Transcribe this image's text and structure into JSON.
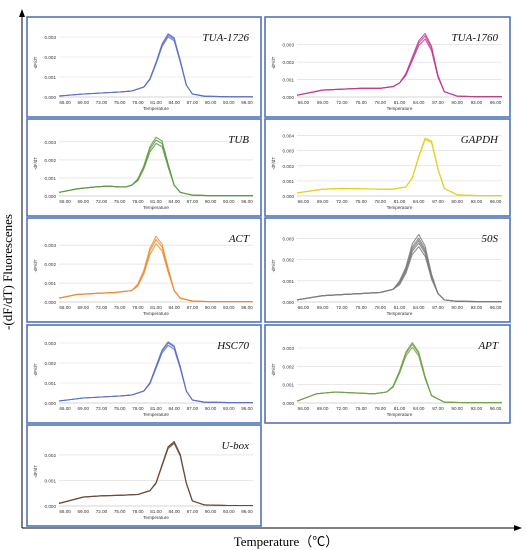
{
  "figure": {
    "ylabel": "-(dF/dT) Fluorescenes",
    "xlabel": "Temperature（℃）"
  },
  "chart_data": [
    {
      "type": "line",
      "gene": "TUA-1726",
      "xlabel": "Temperature",
      "ylabel": "-dF/dT",
      "xticks": [
        "66.00",
        "69.00",
        "72.00",
        "75.00",
        "78.00",
        "81.00",
        "84.00",
        "87.00",
        "90.00",
        "93.00",
        "96.00"
      ],
      "yticks": [
        "0.000",
        "0.001",
        "0.002",
        "0.003"
      ],
      "xlim": [
        65,
        97
      ],
      "ylim": [
        0,
        0.0034
      ],
      "color": "#5b6fc4",
      "series_x": [
        65,
        69,
        72,
        75,
        77,
        79,
        80,
        81,
        82,
        83,
        84,
        85,
        86,
        87,
        89,
        93,
        97
      ],
      "series_y": [
        5e-05,
        0.00015,
        0.0002,
        0.00025,
        0.0003,
        0.0005,
        0.0009,
        0.0017,
        0.0026,
        0.0031,
        0.0029,
        0.0018,
        0.0006,
        0.00015,
        4e-05,
        1e-05,
        1e-05
      ],
      "peak_scales": [
        0.97,
        1.0,
        1.02
      ]
    },
    {
      "type": "line",
      "gene": "TUA-1760",
      "xlabel": "Temperature",
      "ylabel": "-dF/dT",
      "xticks": [
        "66.00",
        "69.00",
        "72.00",
        "75.00",
        "78.00",
        "81.00",
        "84.00",
        "87.00",
        "90.00",
        "93.00",
        "96.00"
      ],
      "yticks": [
        "0.000",
        "0.001",
        "0.002",
        "0.003"
      ],
      "xlim": [
        65,
        97
      ],
      "ylim": [
        0,
        0.0039
      ],
      "color": "#c2378f",
      "series_x": [
        65,
        69,
        72,
        75,
        78,
        80,
        81,
        82,
        83,
        84,
        85,
        86,
        87,
        88,
        90,
        93,
        97
      ],
      "series_y": [
        0.0001,
        0.0004,
        0.00045,
        0.0005,
        0.0005,
        0.0006,
        0.0008,
        0.0013,
        0.0022,
        0.0031,
        0.0035,
        0.0028,
        0.0012,
        0.0003,
        5e-05,
        2e-05,
        2e-05
      ],
      "peak_scales": [
        0.95,
        1.0,
        1.04
      ]
    },
    {
      "type": "line",
      "gene": "TUB",
      "xlabel": "Temperature",
      "ylabel": "-dF/dT",
      "xticks": [
        "66.00",
        "69.00",
        "72.00",
        "75.00",
        "78.00",
        "81.00",
        "84.00",
        "87.00",
        "90.00",
        "93.00",
        "96.00"
      ],
      "yticks": [
        "0.000",
        "0.001",
        "0.002",
        "0.003"
      ],
      "xlim": [
        65,
        97
      ],
      "ylim": [
        0,
        0.0036
      ],
      "color": "#5a9a3c",
      "series_x": [
        65,
        68,
        71,
        73,
        75,
        76,
        77,
        78,
        79,
        80,
        81,
        82,
        83,
        84,
        85,
        87,
        90,
        97
      ],
      "series_y": [
        0.0002,
        0.0004,
        0.0005,
        0.00055,
        0.0005,
        0.0005,
        0.0006,
        0.0009,
        0.0016,
        0.0026,
        0.0031,
        0.0029,
        0.0017,
        0.0006,
        0.0002,
        5e-05,
        2e-05,
        2e-05
      ],
      "peak_scales": [
        0.94,
        1.0,
        1.05
      ]
    },
    {
      "type": "line",
      "gene": "GAPDH",
      "xlabel": "Temperature",
      "ylabel": "-dF/dT",
      "xticks": [
        "66.00",
        "69.00",
        "72.00",
        "75.00",
        "78.00",
        "81.00",
        "84.00",
        "87.00",
        "90.00",
        "93.00",
        "96.00"
      ],
      "yticks": [
        "0.000",
        "0.001",
        "0.002",
        "0.003",
        "0.004"
      ],
      "xlim": [
        65,
        97
      ],
      "ylim": [
        0,
        0.0043
      ],
      "color": "#e6cf1f",
      "series_x": [
        65,
        69,
        72,
        75,
        78,
        80,
        82,
        83,
        84,
        85,
        86,
        87,
        88,
        90,
        93,
        97
      ],
      "series_y": [
        0.0002,
        0.00045,
        0.0005,
        0.00048,
        0.00045,
        0.00045,
        0.0006,
        0.0012,
        0.0026,
        0.0038,
        0.0036,
        0.0018,
        0.0005,
        8e-05,
        3e-05,
        2e-05
      ],
      "peak_scales": [
        0.98,
        1.0,
        1.01
      ]
    },
    {
      "type": "line",
      "gene": "ACT",
      "xlabel": "Temperature",
      "ylabel": "-dF/dT",
      "xticks": [
        "66.00",
        "69.00",
        "72.00",
        "75.00",
        "78.00",
        "81.00",
        "84.00",
        "87.00",
        "90.00",
        "93.00",
        "96.00"
      ],
      "yticks": [
        "0.000",
        "0.001",
        "0.002",
        "0.003"
      ],
      "xlim": [
        65,
        97
      ],
      "ylim": [
        0,
        0.0038
      ],
      "color": "#ec8b2e",
      "series_x": [
        65,
        68,
        71,
        74,
        77,
        78,
        79,
        80,
        81,
        82,
        83,
        84,
        85,
        87,
        90,
        97
      ],
      "series_y": [
        0.0002,
        0.0004,
        0.00045,
        0.0005,
        0.0006,
        0.0009,
        0.0016,
        0.0027,
        0.0033,
        0.0029,
        0.0017,
        0.0006,
        0.0002,
        5e-05,
        2e-05,
        2e-05
      ],
      "peak_scales": [
        0.93,
        1.0,
        1.05
      ]
    },
    {
      "type": "line",
      "gene": "50S",
      "xlabel": "Temperature",
      "ylabel": "-dF/dT",
      "xticks": [
        "66.00",
        "69.00",
        "72.00",
        "75.00",
        "78.00",
        "81.00",
        "84.00",
        "87.00",
        "90.00",
        "93.00",
        "96.00"
      ],
      "yticks": [
        "0.000",
        "0.001",
        "0.002",
        "0.003"
      ],
      "xlim": [
        65,
        97
      ],
      "ylim": [
        0,
        0.0034
      ],
      "color": "#7d7d7d",
      "series_x": [
        65,
        69,
        72,
        75,
        78,
        80,
        81,
        82,
        83,
        84,
        85,
        86,
        87,
        88,
        90,
        93,
        97
      ],
      "series_y": [
        0.0001,
        0.0003,
        0.00035,
        0.0004,
        0.00045,
        0.0006,
        0.0009,
        0.0015,
        0.0025,
        0.0029,
        0.0024,
        0.0012,
        0.0004,
        0.0001,
        3e-05,
        2e-05,
        2e-05
      ],
      "peak_scales": [
        0.9,
        0.96,
        1.0,
        1.04,
        1.1
      ]
    },
    {
      "type": "line",
      "gene": "HSC70",
      "xlabel": "Temperature",
      "ylabel": "-dF/dT",
      "xticks": [
        "66.00",
        "69.00",
        "72.00",
        "75.00",
        "78.00",
        "81.00",
        "84.00",
        "87.00",
        "90.00",
        "93.00",
        "96.00"
      ],
      "yticks": [
        "0.000",
        "0.001",
        "0.002",
        "0.003"
      ],
      "xlim": [
        65,
        97
      ],
      "ylim": [
        0,
        0.0033
      ],
      "color": "#5b6fc4",
      "series_x": [
        65,
        69,
        72,
        75,
        77,
        79,
        80,
        81,
        82,
        83,
        84,
        85,
        86,
        87,
        89,
        93,
        97
      ],
      "series_y": [
        0.0001,
        0.00025,
        0.0003,
        0.00035,
        0.0004,
        0.0006,
        0.001,
        0.0018,
        0.0026,
        0.003,
        0.0028,
        0.0018,
        0.0006,
        0.00015,
        4e-05,
        2e-05,
        2e-05
      ],
      "peak_scales": [
        0.96,
        1.0,
        1.02
      ]
    },
    {
      "type": "line",
      "gene": "APT",
      "xlabel": "Temperature",
      "ylabel": "-dF/dT",
      "xticks": [
        "66.00",
        "69.00",
        "72.00",
        "75.00",
        "78.00",
        "81.00",
        "84.00",
        "87.00",
        "90.00",
        "93.00",
        "96.00"
      ],
      "yticks": [
        "0.000",
        "0.001",
        "0.002",
        "0.003"
      ],
      "xlim": [
        65,
        97
      ],
      "ylim": [
        0,
        0.0036
      ],
      "color": "#6fa043",
      "series_x": [
        65,
        68,
        71,
        74,
        77,
        79,
        80,
        81,
        82,
        83,
        84,
        85,
        86,
        88,
        91,
        97
      ],
      "series_y": [
        0.0001,
        0.0005,
        0.0006,
        0.00055,
        0.0005,
        0.0006,
        0.0009,
        0.0017,
        0.0027,
        0.0032,
        0.0027,
        0.0014,
        0.0004,
        5e-05,
        2e-05,
        2e-05
      ],
      "peak_scales": [
        0.95,
        1.0,
        1.03
      ]
    },
    {
      "type": "line",
      "gene": "U-box",
      "xlabel": "Temperature",
      "ylabel": "-dF/dT",
      "xticks": [
        "66.00",
        "69.00",
        "72.00",
        "75.00",
        "78.00",
        "81.00",
        "84.00",
        "87.00",
        "90.00",
        "93.00",
        "96.00"
      ],
      "yticks": [
        "0.000",
        "0.001",
        "0.002"
      ],
      "xlim": [
        65,
        97
      ],
      "ylim": [
        0,
        0.0027
      ],
      "color": "#6b4a36",
      "series_x": [
        65,
        69,
        72,
        75,
        78,
        80,
        81,
        82,
        83,
        84,
        85,
        86,
        87,
        89,
        93,
        97
      ],
      "series_y": [
        0.0001,
        0.00035,
        0.0004,
        0.00042,
        0.00045,
        0.0006,
        0.0009,
        0.0016,
        0.0023,
        0.0025,
        0.002,
        0.0009,
        0.0002,
        4e-05,
        2e-05,
        2e-05
      ],
      "peak_scales": [
        0.98,
        1.0,
        1.01
      ]
    }
  ]
}
